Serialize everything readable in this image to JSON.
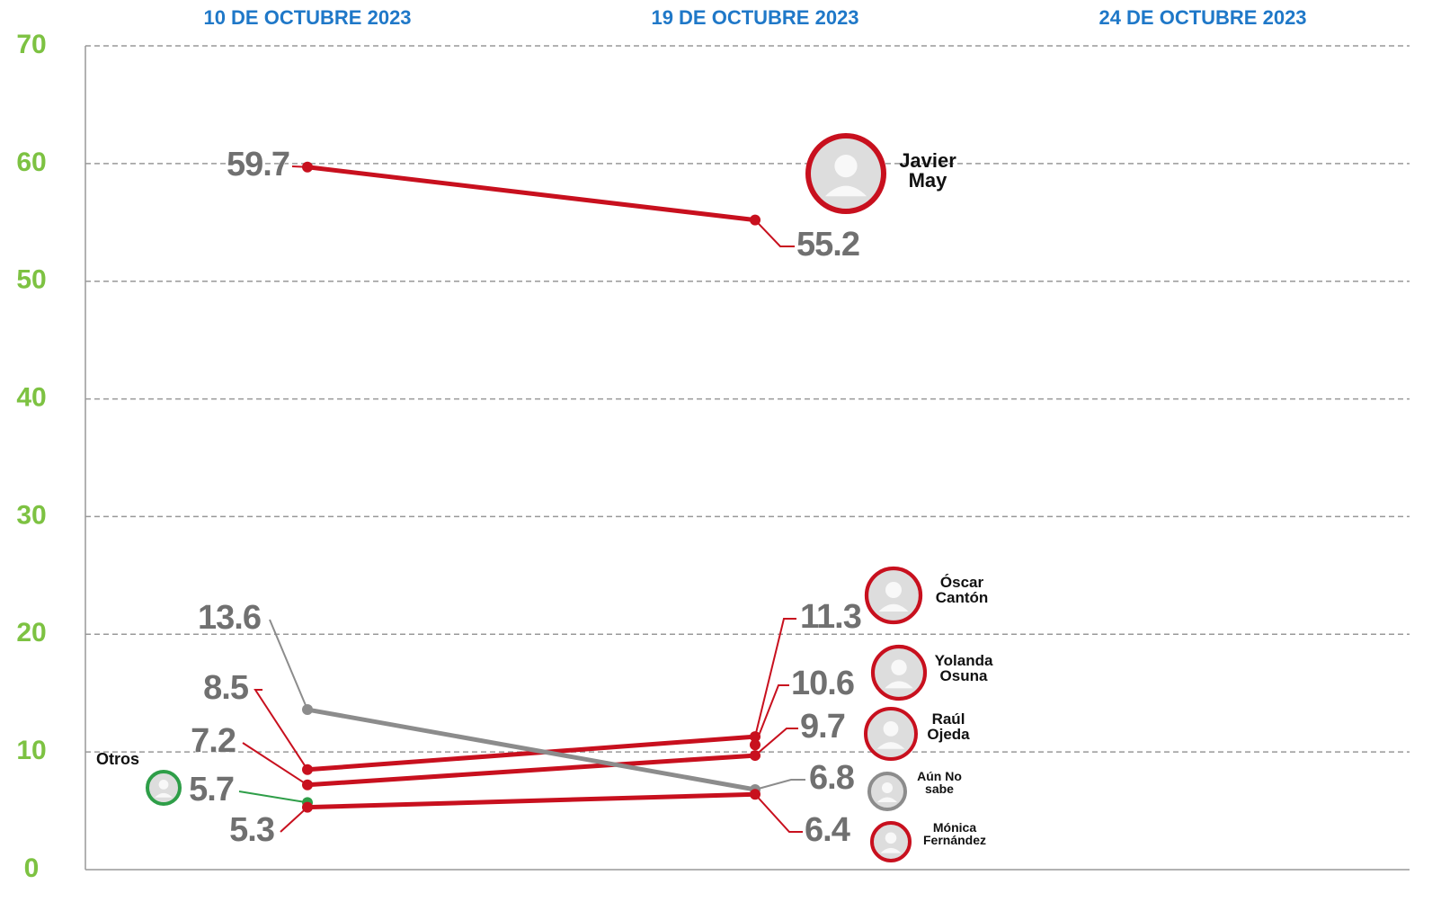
{
  "chart_data": {
    "type": "line",
    "categories": [
      "10 DE OCTUBRE 2023",
      "19 DE OCTUBRE 2023",
      "24 DE OCTUBRE 2023"
    ],
    "ylim": [
      0,
      70
    ],
    "yticks": [
      0,
      10,
      20,
      30,
      40,
      50,
      60,
      70
    ],
    "grid": true,
    "series": [
      {
        "name": "Javier May",
        "color": "#c8101e",
        "values": [
          59.7,
          55.2,
          null
        ]
      },
      {
        "name": "Óscar Cantón",
        "color": "#c8101e",
        "values": [
          8.5,
          11.3,
          null
        ]
      },
      {
        "name": "Yolanda Osuna",
        "color": "#c8101e",
        "values": [
          null,
          10.6,
          null
        ]
      },
      {
        "name": "Raúl Ojeda",
        "color": "#c8101e",
        "values": [
          7.2,
          9.7,
          null
        ]
      },
      {
        "name": "Aún No sabe",
        "color": "#8c8c8c",
        "values": [
          13.6,
          6.8,
          null
        ]
      },
      {
        "name": "Otros",
        "color": "#2e9e48",
        "values": [
          5.7,
          null,
          null
        ]
      },
      {
        "name": "Mónica Fernández",
        "color": "#c8101e",
        "values": [
          5.3,
          6.4,
          null
        ]
      }
    ]
  }
}
